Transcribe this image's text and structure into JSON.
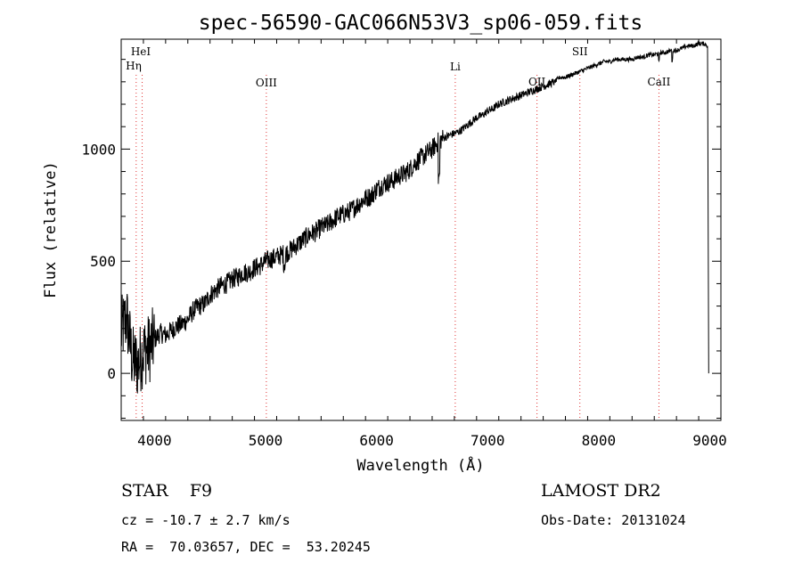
{
  "chart_data": {
    "type": "line",
    "title": "spec-56590-GAC066N53V3_sp06-059.fits",
    "xlabel": "Wavelength (Å)",
    "ylabel": "Flux (relative)",
    "xlim": [
      3700,
      9100
    ],
    "ylim": [
      -210,
      1490
    ],
    "xticks": [
      4000,
      5000,
      6000,
      7000,
      8000,
      9000
    ],
    "yticks": [
      0,
      500,
      1000
    ],
    "grid": false,
    "series": [
      {
        "x": [
          3700,
          3750,
          3800,
          3850,
          3900,
          3950,
          4000,
          4050,
          4100,
          4150,
          4200,
          4250,
          4300,
          4350,
          4400,
          4450,
          4500,
          4550,
          4600,
          4650,
          4700,
          4750,
          4800,
          4850,
          4900,
          4950,
          5000,
          5050,
          5100,
          5150,
          5200,
          5250,
          5300,
          5350,
          5400,
          5450,
          5500,
          5550,
          5600,
          5650,
          5700,
          5750,
          5800,
          5850,
          5900,
          5950,
          6000,
          6050,
          6100,
          6150,
          6200,
          6250,
          6300,
          6350,
          6400,
          6450,
          6500,
          6550,
          6600,
          6650,
          6700,
          6750,
          6800,
          6850,
          6900,
          6950,
          7000,
          7050,
          7100,
          7150,
          7200,
          7250,
          7300,
          7350,
          7400,
          7450,
          7500,
          7550,
          7600,
          7650,
          7700,
          7750,
          7800,
          7850,
          7900,
          7950,
          8000,
          8050,
          8100,
          8150,
          8200,
          8250,
          8300,
          8350,
          8400,
          8450,
          8500,
          8550,
          8600,
          8650,
          8700,
          8750,
          8800,
          8850,
          8900,
          8950,
          8980,
          8990
        ],
        "y": [
          180,
          250,
          60,
          40,
          100,
          110,
          150,
          180,
          170,
          190,
          210,
          220,
          240,
          280,
          300,
          310,
          350,
          370,
          390,
          400,
          420,
          430,
          450,
          450,
          470,
          480,
          500,
          510,
          520,
          530,
          540,
          560,
          580,
          600,
          620,
          630,
          650,
          660,
          680,
          700,
          710,
          720,
          740,
          760,
          780,
          790,
          820,
          840,
          850,
          860,
          880,
          890,
          910,
          940,
          960,
          980,
          1000,
          1030,
          1050,
          1060,
          1070,
          1080,
          1100,
          1120,
          1140,
          1150,
          1170,
          1180,
          1200,
          1210,
          1220,
          1230,
          1240,
          1250,
          1260,
          1270,
          1280,
          1290,
          1300,
          1320,
          1320,
          1330,
          1340,
          1350,
          1360,
          1370,
          1380,
          1390,
          1390,
          1400,
          1400,
          1400,
          1400,
          1410,
          1410,
          1420,
          1420,
          1430,
          1430,
          1440,
          1440,
          1450,
          1460,
          1460,
          1470,
          1470,
          1460,
          0
        ]
      }
    ],
    "annotations": [
      {
        "label": "HeI",
        "x": 3889
      },
      {
        "label": "Hη",
        "x": 3835
      },
      {
        "label": "OIII",
        "x": 5007
      },
      {
        "label": "Li",
        "x": 6708
      },
      {
        "label": "OII",
        "x": 7444
      },
      {
        "label": "SII",
        "x": 7830
      },
      {
        "label": "CaII",
        "x": 8542
      }
    ]
  },
  "info": {
    "class_line": "STAR    F9",
    "survey": "LAMOST DR2",
    "cz_line": "cz = -10.7 ± 2.7 km/s",
    "obs_date": "Obs-Date: 20131024",
    "coords_line": "RA =  70.03657, DEC =  53.20245"
  }
}
